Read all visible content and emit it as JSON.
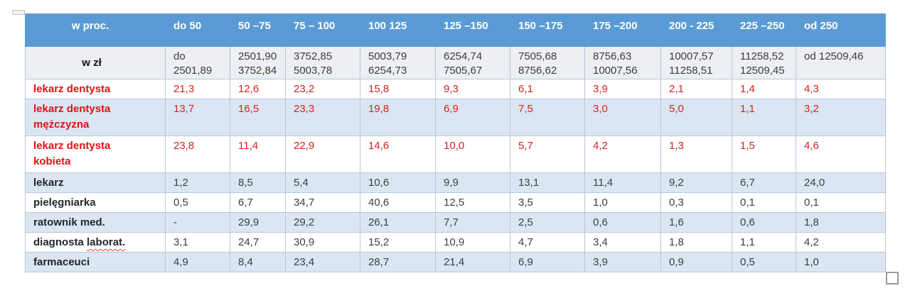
{
  "colors": {
    "header_bg": "#5b9bd5",
    "band_bg": "#dbe6f2",
    "subheader_bg": "#edeff3",
    "grid_line": "#b7c7d9",
    "red_label": "#e01212",
    "red_value": "#d42222",
    "dark_label": "#21262e",
    "dark_value": "#3a4048",
    "header_text": "#ffffff",
    "squiggle": "#ff3b30"
  },
  "table": {
    "unit_pct_label": "w proc.",
    "unit_zl_label": "w zł",
    "pct_columns": [
      "do 50",
      "50 –75",
      "75 – 100",
      "100 125",
      "125 –150",
      "150 –175",
      "175 –200",
      "200 - 225",
      "225 –250",
      "od 250"
    ],
    "zl_ranges": [
      [
        "do",
        "2501,89"
      ],
      [
        "2501,90",
        "3752,84"
      ],
      [
        "3752,85",
        "5003,78"
      ],
      [
        "5003,79",
        "6254,73"
      ],
      [
        "6254,74",
        "7505,67"
      ],
      [
        "7505,68",
        "8756,62"
      ],
      [
        "8756,63",
        "10007,56"
      ],
      [
        "10007,57",
        "11258,51"
      ],
      [
        "11258,52",
        "12509,45"
      ],
      [
        "od 12509,46"
      ]
    ],
    "rows": [
      {
        "label_lines": [
          "lekarz dentysta"
        ],
        "style": "red",
        "banded": false,
        "values": [
          "21,3",
          "12,6",
          "23,2",
          "15,8",
          "9,3",
          "6,1",
          "3,9",
          "2,1",
          "1,4",
          "4,3"
        ]
      },
      {
        "label_lines": [
          "lekarz dentysta",
          "mężczyzna"
        ],
        "style": "red",
        "banded": true,
        "values": [
          "13,7",
          "16,5",
          "23,3",
          "19,8",
          "6,9",
          "7,5",
          "3,0",
          "5,0",
          "1,1",
          "3,2"
        ]
      },
      {
        "label_lines": [
          "lekarz dentysta",
          "kobieta"
        ],
        "style": "red",
        "banded": false,
        "values": [
          "23,8",
          "11,4",
          "22,9",
          "14,6",
          "10,0",
          "5,7",
          "4,2",
          "1,3",
          "1,5",
          "4,6"
        ]
      },
      {
        "label_lines": [
          "lekarz"
        ],
        "style": "dark",
        "banded": true,
        "values": [
          "1,2",
          "8,5",
          "5,4",
          "10,6",
          "9,9",
          "13,1",
          "11,4",
          "9,2",
          "6,7",
          "24,0"
        ]
      },
      {
        "label_lines": [
          "pielęgniarka"
        ],
        "style": "dark",
        "banded": false,
        "values": [
          "0,5",
          "6,7",
          "34,7",
          "40,6",
          "12,5",
          "3,5",
          "1,0",
          "0,3",
          "0,1",
          "0,1"
        ]
      },
      {
        "label_lines": [
          "ratownik med."
        ],
        "style": "dark",
        "banded": true,
        "values": [
          "-",
          "29,9",
          "29,2",
          "26,1",
          "7,7",
          "2,5",
          "0,6",
          "1,6",
          "0,6",
          "1,8"
        ]
      },
      {
        "label_lines": [
          "diagnosta laborat."
        ],
        "style": "dark",
        "banded": false,
        "squiggle_word": "laborat.",
        "values": [
          "3,1",
          "24,7",
          "30,9",
          "15,2",
          "10,9",
          "4,7",
          "3,4",
          "1,8",
          "1,1",
          "4,2"
        ]
      },
      {
        "label_lines": [
          "farmaceuci"
        ],
        "style": "dark",
        "banded": true,
        "values": [
          "4,9",
          "8,4",
          "23,4",
          "28,7",
          "21,4",
          "6,9",
          "3,9",
          "0,9",
          "0,5",
          "1,0"
        ]
      }
    ]
  }
}
